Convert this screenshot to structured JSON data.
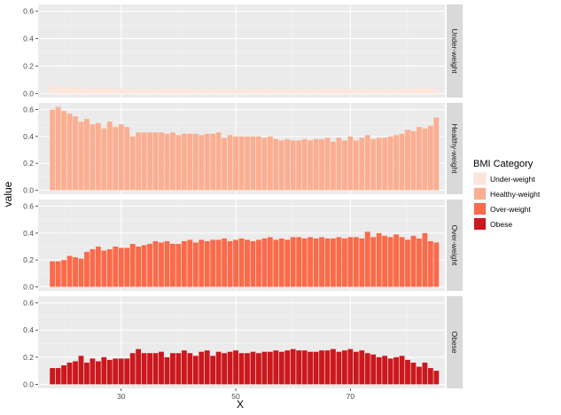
{
  "chart_data": {
    "type": "bar",
    "subtype": "faceted-stacked-panels",
    "xlabel": "X",
    "ylabel": "value",
    "ylim": [
      -0.03,
      0.65
    ],
    "yticks": [
      0.0,
      0.2,
      0.4,
      0.6
    ],
    "ytick_labels": [
      "0.0",
      "0.2",
      "0.4",
      "0.6"
    ],
    "xlim": [
      15.5,
      86.5
    ],
    "xticks": [
      30,
      50,
      70
    ],
    "xtick_labels": [
      "30",
      "50",
      "70"
    ],
    "x": [
      18,
      19,
      20,
      21,
      22,
      23,
      24,
      25,
      26,
      27,
      28,
      29,
      30,
      31,
      32,
      33,
      34,
      35,
      36,
      37,
      38,
      39,
      40,
      41,
      42,
      43,
      44,
      45,
      46,
      47,
      48,
      49,
      50,
      51,
      52,
      53,
      54,
      55,
      56,
      57,
      58,
      59,
      60,
      61,
      62,
      63,
      64,
      65,
      66,
      67,
      68,
      69,
      70,
      71,
      72,
      73,
      74,
      75,
      76,
      77,
      78,
      79,
      80,
      81,
      82,
      83,
      84,
      85
    ],
    "grid": true,
    "legend": {
      "title": "BMI Category",
      "position": "right",
      "entries": [
        "Under-weight",
        "Healthy-weight",
        "Over-weight",
        "Obese"
      ]
    },
    "series": [
      {
        "name": "Under-weight",
        "color": "#FEE5D9",
        "values": [
          0.07,
          0.05,
          0.05,
          0.05,
          0.05,
          0.04,
          0.04,
          0.04,
          0.04,
          0.04,
          0.04,
          0.04,
          0.04,
          0.03,
          0.03,
          0.03,
          0.03,
          0.03,
          0.03,
          0.03,
          0.03,
          0.03,
          0.03,
          0.03,
          0.03,
          0.03,
          0.03,
          0.03,
          0.03,
          0.03,
          0.03,
          0.03,
          0.03,
          0.03,
          0.03,
          0.03,
          0.03,
          0.03,
          0.03,
          0.03,
          0.03,
          0.03,
          0.03,
          0.03,
          0.03,
          0.03,
          0.03,
          0.03,
          0.03,
          0.03,
          0.03,
          0.03,
          0.03,
          0.03,
          0.03,
          0.03,
          0.03,
          0.03,
          0.03,
          0.03,
          0.03,
          0.03,
          0.04,
          0.04,
          0.04,
          0.04,
          0.04,
          0.03
        ]
      },
      {
        "name": "Healthy-weight",
        "color": "#FCAE91",
        "values": [
          0.6,
          0.62,
          0.59,
          0.57,
          0.55,
          0.51,
          0.53,
          0.49,
          0.5,
          0.46,
          0.51,
          0.47,
          0.49,
          0.47,
          0.4,
          0.43,
          0.43,
          0.43,
          0.43,
          0.43,
          0.42,
          0.43,
          0.41,
          0.42,
          0.42,
          0.42,
          0.41,
          0.42,
          0.42,
          0.43,
          0.39,
          0.41,
          0.4,
          0.4,
          0.4,
          0.4,
          0.4,
          0.39,
          0.4,
          0.38,
          0.37,
          0.38,
          0.37,
          0.37,
          0.38,
          0.37,
          0.38,
          0.38,
          0.39,
          0.36,
          0.39,
          0.37,
          0.4,
          0.37,
          0.39,
          0.41,
          0.38,
          0.39,
          0.39,
          0.4,
          0.41,
          0.42,
          0.45,
          0.44,
          0.47,
          0.46,
          0.48,
          0.54
        ]
      },
      {
        "name": "Over-weight",
        "color": "#FB6A4A",
        "values": [
          0.19,
          0.19,
          0.2,
          0.23,
          0.22,
          0.21,
          0.26,
          0.28,
          0.3,
          0.27,
          0.28,
          0.3,
          0.29,
          0.29,
          0.32,
          0.3,
          0.31,
          0.32,
          0.34,
          0.33,
          0.34,
          0.32,
          0.32,
          0.34,
          0.35,
          0.33,
          0.35,
          0.34,
          0.35,
          0.35,
          0.36,
          0.34,
          0.35,
          0.36,
          0.35,
          0.34,
          0.35,
          0.36,
          0.37,
          0.35,
          0.36,
          0.35,
          0.37,
          0.37,
          0.36,
          0.37,
          0.36,
          0.37,
          0.36,
          0.36,
          0.37,
          0.36,
          0.37,
          0.37,
          0.36,
          0.41,
          0.37,
          0.4,
          0.38,
          0.37,
          0.39,
          0.37,
          0.35,
          0.38,
          0.36,
          0.4,
          0.34,
          0.33
        ]
      },
      {
        "name": "Obese",
        "color": "#CB181D",
        "values": [
          0.12,
          0.12,
          0.14,
          0.16,
          0.17,
          0.21,
          0.16,
          0.19,
          0.17,
          0.2,
          0.18,
          0.19,
          0.19,
          0.19,
          0.23,
          0.26,
          0.23,
          0.23,
          0.23,
          0.24,
          0.2,
          0.23,
          0.23,
          0.25,
          0.23,
          0.21,
          0.24,
          0.25,
          0.21,
          0.24,
          0.23,
          0.24,
          0.25,
          0.23,
          0.23,
          0.24,
          0.23,
          0.24,
          0.24,
          0.25,
          0.24,
          0.25,
          0.26,
          0.25,
          0.25,
          0.24,
          0.24,
          0.25,
          0.25,
          0.26,
          0.24,
          0.25,
          0.26,
          0.24,
          0.25,
          0.23,
          0.22,
          0.2,
          0.21,
          0.19,
          0.2,
          0.21,
          0.18,
          0.16,
          0.13,
          0.16,
          0.12,
          0.1
        ]
      }
    ]
  }
}
